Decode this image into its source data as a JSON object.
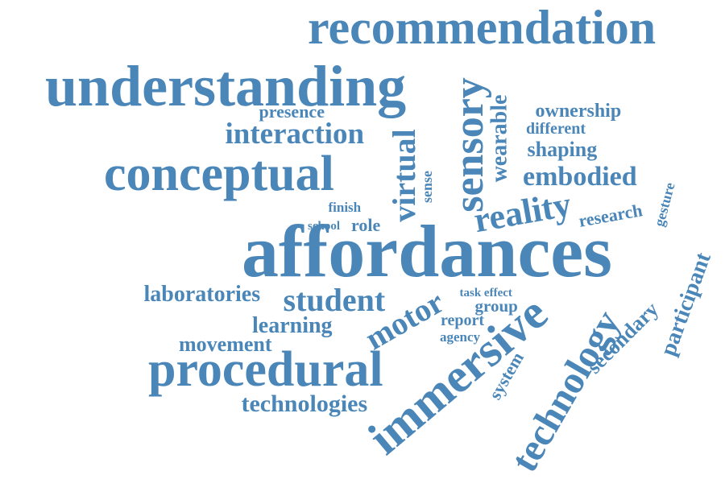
{
  "cloud": {
    "color": "#4a86b8",
    "words": [
      "recommendation",
      "understanding",
      "sensory",
      "wearable",
      "presence",
      "ownership",
      "interaction",
      "different",
      "virtual",
      "shaping",
      "conceptual",
      "embodied",
      "sense",
      "gesture",
      "finish",
      "reality",
      "research",
      "school",
      "role",
      "affordances",
      "participant",
      "laboratories",
      "student",
      "task effect",
      "group",
      "immersive",
      "technology",
      "report",
      "secondary",
      "learning",
      "motor",
      "agency",
      "movement",
      "system",
      "procedural",
      "technologies"
    ]
  }
}
